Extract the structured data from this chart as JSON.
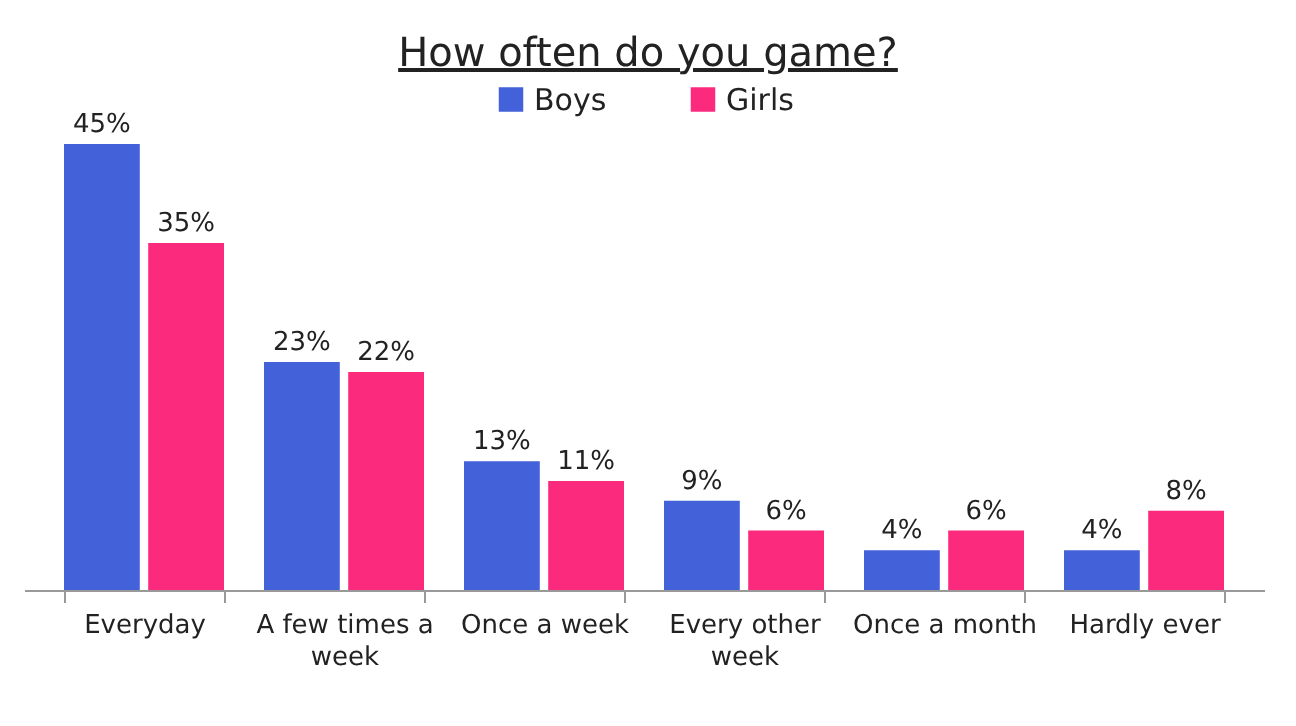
{
  "chart_data": {
    "type": "bar",
    "title": "How often do you game?",
    "categories": [
      "Everyday",
      "A few times a week",
      "Once a week",
      "Every other week",
      "Once a month",
      "Hardly ever"
    ],
    "series": [
      {
        "name": "Boys",
        "color": "#4361d8",
        "values": [
          45,
          23,
          13,
          9,
          4,
          4
        ],
        "value_labels": [
          "45%",
          "23%",
          "13%",
          "9%",
          "4%",
          "4%"
        ]
      },
      {
        "name": "Girls",
        "color": "#fc2a7d",
        "values": [
          35,
          22,
          11,
          6,
          6,
          8
        ],
        "value_labels": [
          "35%",
          "22%",
          "11%",
          "6%",
          "6%",
          "8%"
        ]
      }
    ],
    "legend": "top"
  }
}
